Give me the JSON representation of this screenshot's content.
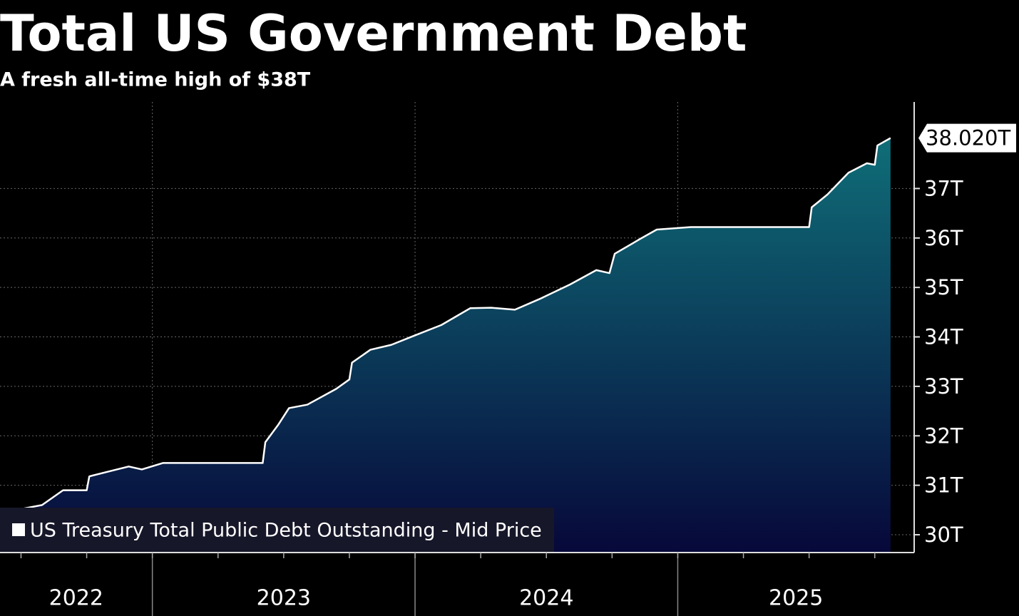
{
  "chart_data": {
    "type": "area",
    "title": "Total US Government Debt",
    "subtitle": "A fresh all-time high of $38T",
    "x": [
      2022.42,
      2022.5,
      2022.58,
      2022.66,
      2022.75,
      2022.76,
      2022.85,
      2022.91,
      2022.96,
      2023.04,
      2023.42,
      2023.43,
      2023.48,
      2023.52,
      2023.59,
      2023.7,
      2023.75,
      2023.76,
      2023.83,
      2023.91,
      2023.99,
      2024.1,
      2024.21,
      2024.29,
      2024.38,
      2024.48,
      2024.59,
      2024.69,
      2024.74,
      2024.76,
      2024.86,
      2024.92,
      2025.05,
      2025.5,
      2025.51,
      2025.57,
      2025.65,
      2025.72,
      2025.75,
      2025.76,
      2025.81
    ],
    "series": [
      {
        "name": "US Treasury Total Public Debt Outstanding - Mid Price",
        "color": "#ffffff",
        "values": [
          30.43,
          30.52,
          30.6,
          30.9,
          30.9,
          31.18,
          31.3,
          31.38,
          31.32,
          31.45,
          31.45,
          31.87,
          32.23,
          32.56,
          32.63,
          32.95,
          33.14,
          33.48,
          33.74,
          33.84,
          34.01,
          34.24,
          34.58,
          34.59,
          34.55,
          34.78,
          35.06,
          35.35,
          35.29,
          35.68,
          35.99,
          36.17,
          36.22,
          36.22,
          36.62,
          36.88,
          37.32,
          37.51,
          37.48,
          37.87,
          38.02
        ]
      }
    ],
    "area_gradient": [
      "#0f6e78",
      "#07083a"
    ],
    "xlim": [
      2022.42,
      2025.9
    ],
    "xticks": [
      2023,
      2024,
      2025
    ],
    "x_labels": [
      {
        "value": 2022,
        "label": "2022"
      },
      {
        "value": 2023,
        "label": "2023"
      },
      {
        "value": 2024,
        "label": "2024"
      },
      {
        "value": 2025,
        "label": "2025"
      }
    ],
    "ylim": [
      29.64,
      38.75
    ],
    "yticks": [
      {
        "value": 30,
        "label": "30T"
      },
      {
        "value": 31,
        "label": "31T"
      },
      {
        "value": 32,
        "label": "32T"
      },
      {
        "value": 33,
        "label": "33T"
      },
      {
        "value": 34,
        "label": "34T"
      },
      {
        "value": 35,
        "label": "35T"
      },
      {
        "value": 36,
        "label": "36T"
      },
      {
        "value": 37,
        "label": "37T"
      }
    ],
    "grid": true,
    "legend": "lower left",
    "annotations": [
      {
        "x": 2025.81,
        "value": 38.02,
        "label": "38.020T"
      }
    ]
  }
}
